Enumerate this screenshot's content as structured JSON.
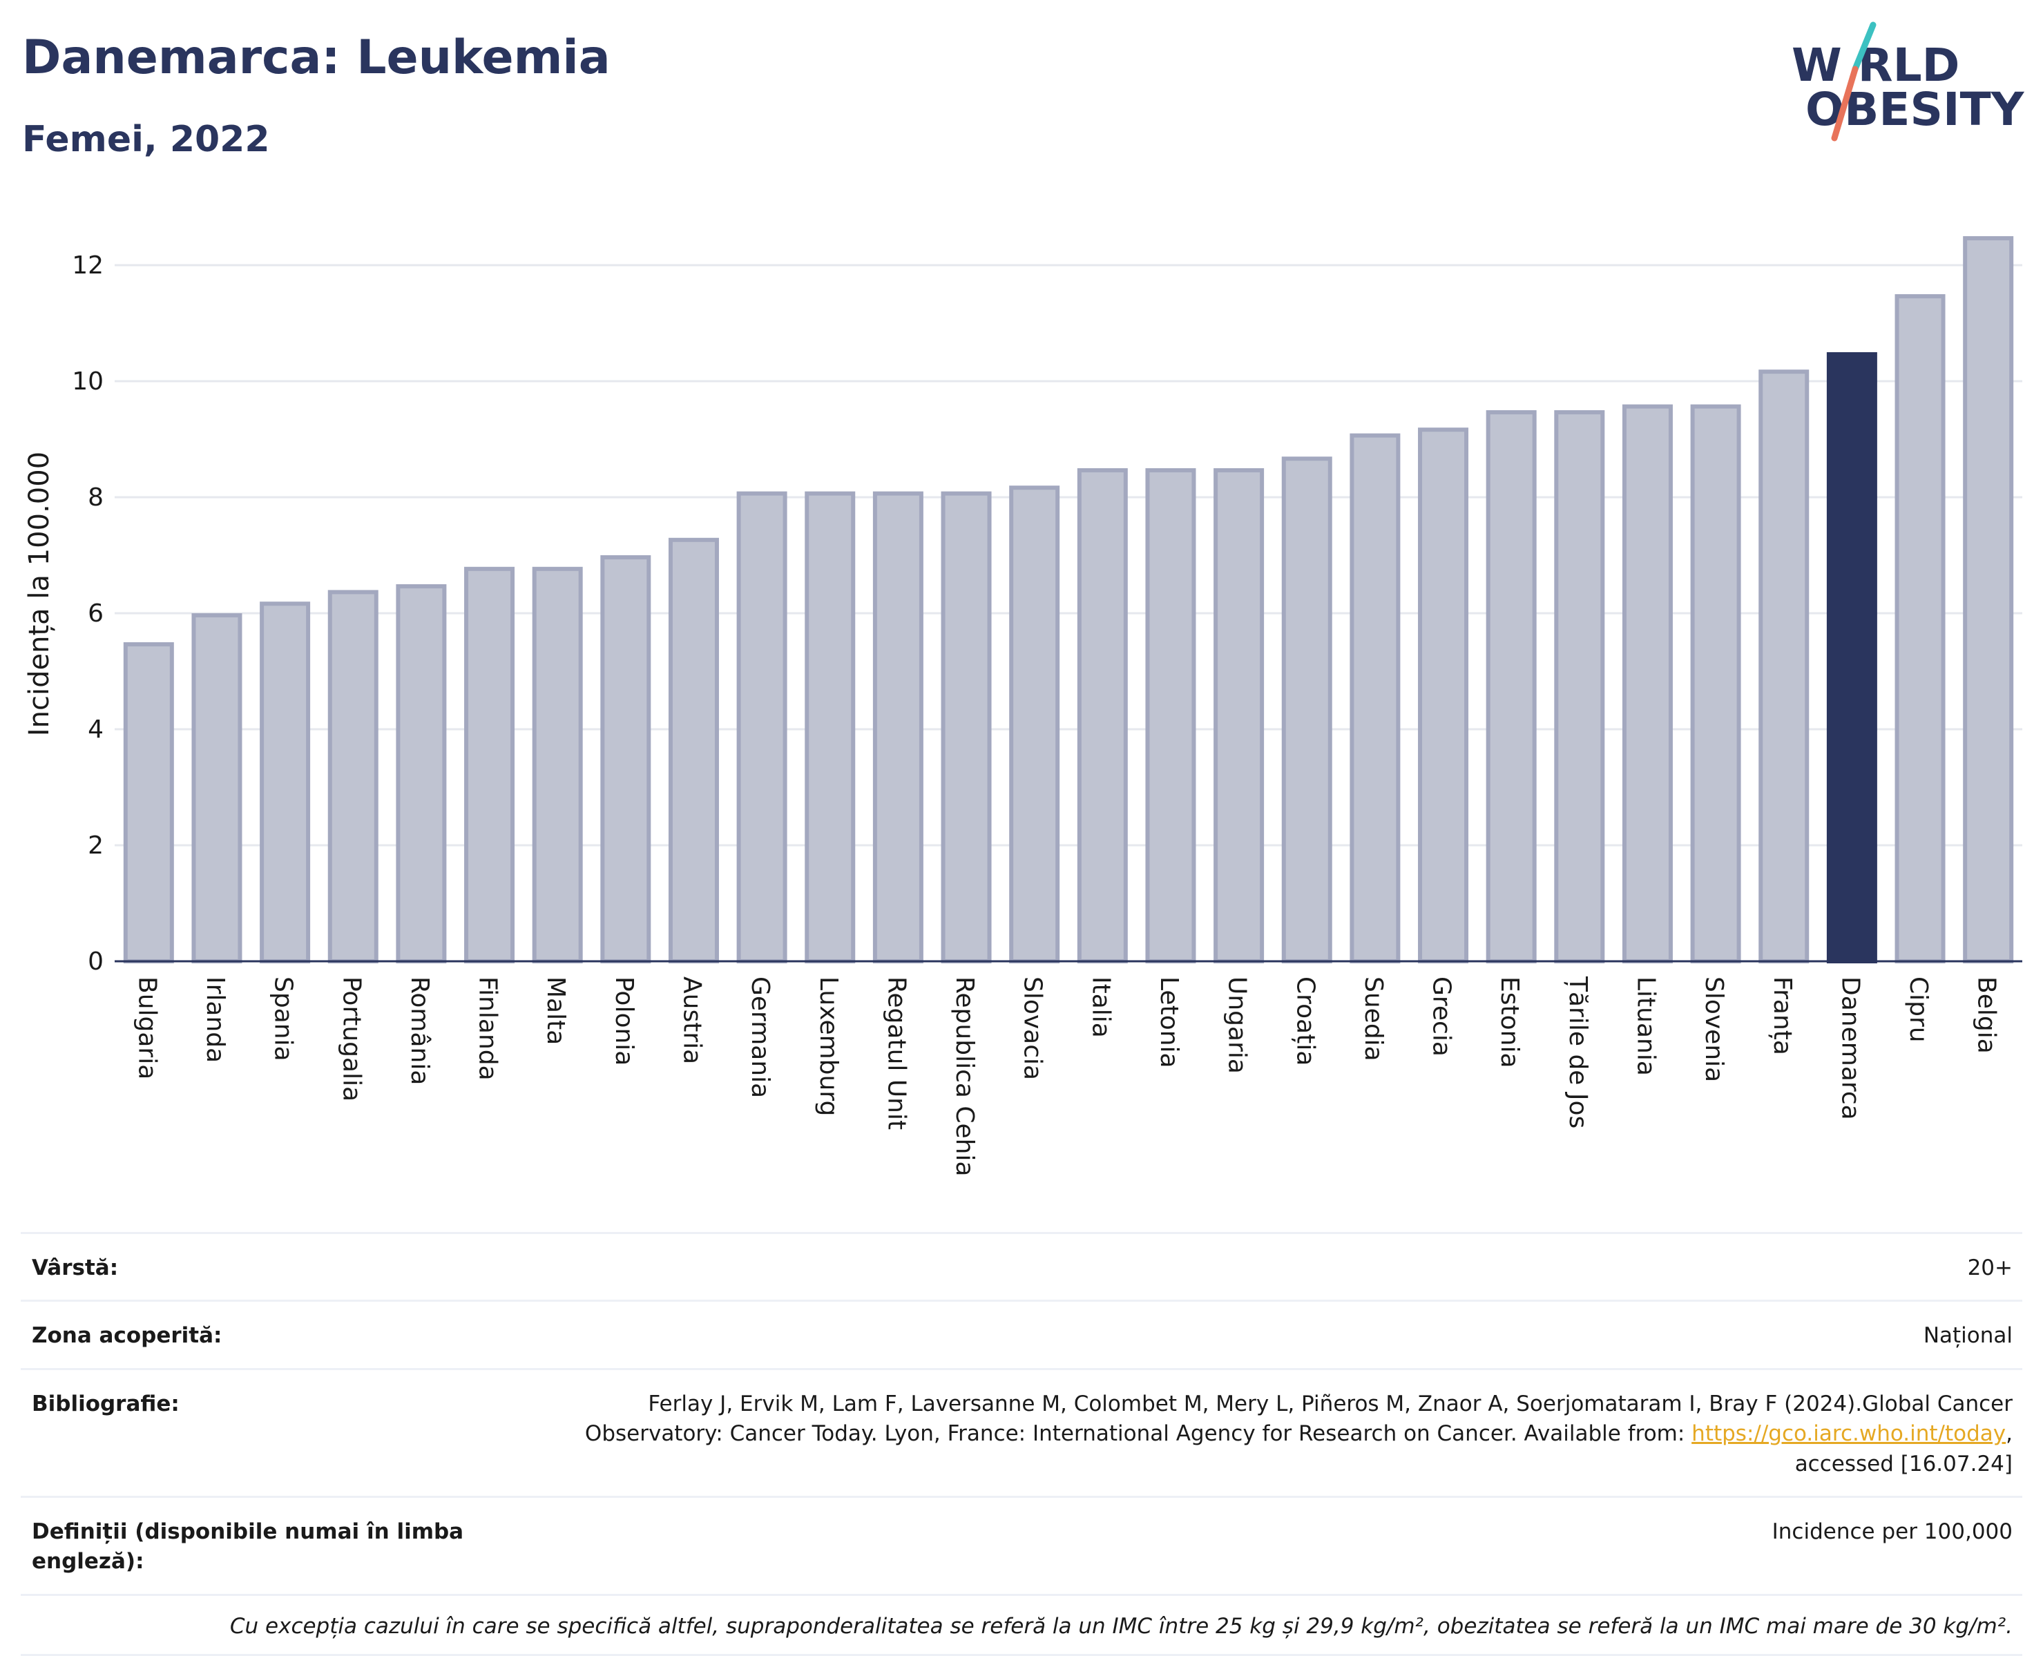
{
  "title": "Danemarca: Leukemia",
  "subtitle": "Femei, 2022",
  "logo": {
    "line1": "W RLD",
    "line2": "OBESITY",
    "slash_color_top": "#3cc1c1",
    "slash_color_bottom": "#e8735a"
  },
  "chart_data": {
    "type": "bar",
    "ylabel": "Incidența la 100.000",
    "ylim": [
      0,
      13
    ],
    "yticks": [
      0,
      2,
      4,
      6,
      8,
      10,
      12
    ],
    "grid": true,
    "highlight": "Danemarca",
    "colors": {
      "bar": "#bfc3d1",
      "bar_border": "#a3a8bf",
      "highlight": "#2a355e"
    },
    "categories": [
      "Bulgaria",
      "Irlanda",
      "Spania",
      "Portugalia",
      "România",
      "Finlanda",
      "Malta",
      "Polonia",
      "Austria",
      "Germania",
      "Luxemburg",
      "Regatul Unit",
      "Republica Cehia",
      "Slovacia",
      "Italia",
      "Letonia",
      "Ungaria",
      "Croația",
      "Suedia",
      "Grecia",
      "Estonia",
      "Țările de Jos",
      "Lituania",
      "Slovenia",
      "Franța",
      "Danemarca",
      "Cipru",
      "Belgia"
    ],
    "values": [
      5.5,
      6.0,
      6.2,
      6.4,
      6.5,
      6.8,
      6.8,
      7.0,
      7.3,
      8.1,
      8.1,
      8.1,
      8.1,
      8.2,
      8.5,
      8.5,
      8.5,
      8.7,
      9.1,
      9.2,
      9.5,
      9.5,
      9.6,
      9.6,
      10.2,
      10.5,
      11.5,
      12.5
    ]
  },
  "meta": {
    "age_label": "Vârstă:",
    "age_value": "20+",
    "coverage_label": "Zona acoperită:",
    "coverage_value": "Național",
    "bibliography_label": "Bibliografie:",
    "bibliography_text": "Ferlay J, Ervik M, Lam F, Laversanne M, Colombet M, Mery L, Piñeros M, Znaor A, Soerjomataram I, Bray F (2024).Global Cancer Observatory: Cancer Today. Lyon, France: International Agency for Research on Cancer. Available from: ",
    "bibliography_link": "https://gco.iarc.who.int/today",
    "bibliography_suffix": ", accessed [16.07.24]",
    "definitions_label": "Definiții (disponibile numai în limba engleză):",
    "definitions_value": "Incidence per 100,000",
    "note": "Cu excepția cazului în care se specifică altfel, supraponderalitatea se referă la un IMC între 25 kg și 29,9 kg/m², obezitatea se referă la un IMC mai mare de 30 kg/m²."
  }
}
